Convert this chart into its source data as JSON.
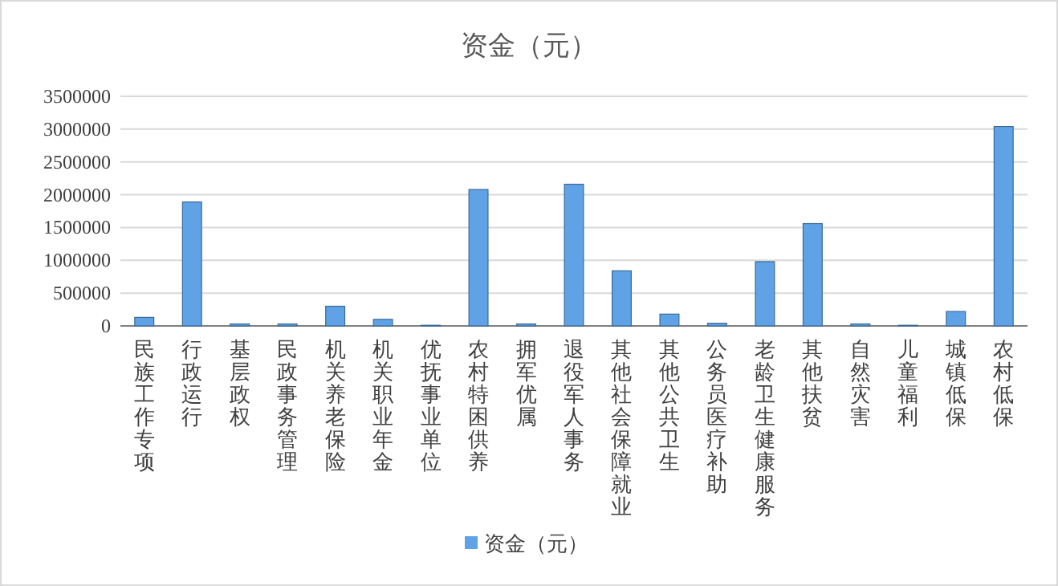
{
  "chart_data": {
    "type": "bar",
    "title": "资金（元）",
    "categories": [
      "民族工作专项",
      "行政运行",
      "基层政权",
      "民政事务管理",
      "机关养老保险",
      "机关职业年金",
      "优抚事业单位",
      "农村特困供养",
      "拥军优属",
      "退役军人事务",
      "其他社会保障就业",
      "其他公共卫生",
      "公务员医疗补助",
      "老龄卫生健康服务",
      "其他扶贫",
      "自然灾害",
      "儿童福利",
      "城镇低保",
      "农村低保"
    ],
    "series": [
      {
        "name": "资金（元）",
        "color": "#5fa3e6",
        "values": [
          130000,
          1890000,
          30000,
          30000,
          300000,
          100000,
          10000,
          2080000,
          30000,
          2160000,
          840000,
          180000,
          40000,
          980000,
          1560000,
          30000,
          10000,
          220000,
          3040000
        ]
      }
    ],
    "ylim": [
      0,
      3500000
    ],
    "yticks": [
      0,
      500000,
      1000000,
      1500000,
      2000000,
      2500000,
      3000000,
      3500000
    ],
    "grid": "y",
    "legend": "bottom"
  }
}
